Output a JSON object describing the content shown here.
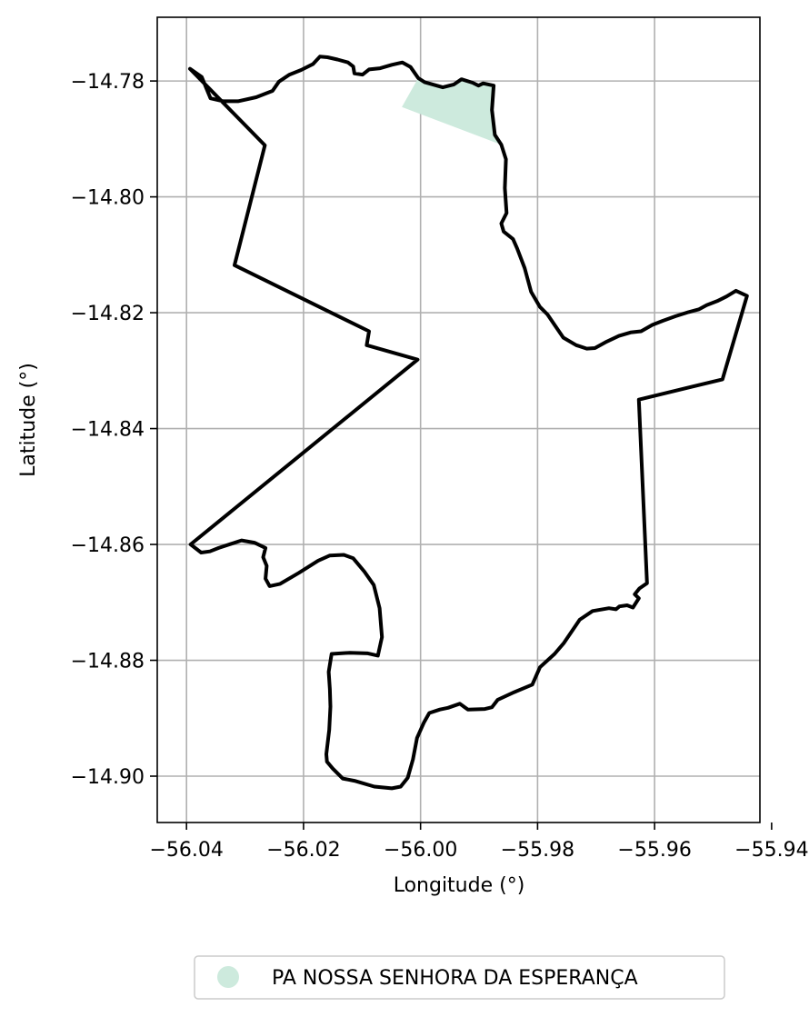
{
  "chart_data": {
    "type": "map",
    "xlabel": "Longitude (°)",
    "ylabel": "Latitude (°)",
    "xlim": [
      -56.045,
      -55.942
    ],
    "ylim": [
      -14.908,
      -14.769
    ],
    "xticks": [
      -56.04,
      -56.02,
      -56.0,
      -55.98,
      -55.96,
      -55.94
    ],
    "xtick_labels": [
      "−56.04",
      "−56.02",
      "−56.00",
      "−55.98",
      "−55.96",
      "−55.94"
    ],
    "yticks": [
      -14.78,
      -14.8,
      -14.82,
      -14.84,
      -14.86,
      -14.88,
      -14.9
    ],
    "ytick_labels": [
      "−14.78",
      "−14.80",
      "−14.82",
      "−14.84",
      "−14.86",
      "−14.88",
      "−14.90"
    ],
    "grid": true,
    "legend_position": "bottom-center",
    "colors": {
      "boundary": "#000000",
      "area_fill": "#cdeadd",
      "grid": "#b0b0b0"
    },
    "legend": [
      {
        "label": "PA NOSSA SENHORA DA ESPERANÇA",
        "color": "#cdeadd"
      }
    ],
    "boundary": [
      [
        -56.0394,
        -14.7779
      ],
      [
        -56.0374,
        -14.7793
      ],
      [
        -56.0359,
        -14.783
      ],
      [
        -56.0337,
        -14.7835
      ],
      [
        -56.0312,
        -14.7835
      ],
      [
        -56.0281,
        -14.7828
      ],
      [
        -56.0253,
        -14.7817
      ],
      [
        -56.0242,
        -14.7801
      ],
      [
        -56.0224,
        -14.7789
      ],
      [
        -56.0204,
        -14.7781
      ],
      [
        -56.0184,
        -14.7771
      ],
      [
        -56.0172,
        -14.7758
      ],
      [
        -56.0159,
        -14.7759
      ],
      [
        -56.0142,
        -14.7763
      ],
      [
        -56.0124,
        -14.7768
      ],
      [
        -56.0115,
        -14.7775
      ],
      [
        -56.0113,
        -14.7787
      ],
      [
        -56.0099,
        -14.7789
      ],
      [
        -56.0088,
        -14.778
      ],
      [
        -56.0069,
        -14.7778
      ],
      [
        -56.0049,
        -14.7772
      ],
      [
        -56.0031,
        -14.7768
      ],
      [
        -56.0017,
        -14.7776
      ],
      [
        -56.0004,
        -14.7795
      ],
      [
        -55.9993,
        -14.7802
      ],
      [
        -55.9962,
        -14.7811
      ],
      [
        -55.9943,
        -14.7806
      ],
      [
        -55.993,
        -14.7797
      ],
      [
        -55.9911,
        -14.7803
      ],
      [
        -55.9901,
        -14.7808
      ],
      [
        -55.9893,
        -14.7804
      ],
      [
        -55.9875,
        -14.7808
      ],
      [
        -55.9878,
        -14.785
      ],
      [
        -55.9873,
        -14.7893
      ],
      [
        -55.9862,
        -14.791
      ],
      [
        -55.9854,
        -14.7935
      ],
      [
        -55.9856,
        -14.7985
      ],
      [
        -55.9853,
        -14.8028
      ],
      [
        -55.9862,
        -14.8046
      ],
      [
        -55.9858,
        -14.806
      ],
      [
        -55.9842,
        -14.8073
      ],
      [
        -55.9835,
        -14.8089
      ],
      [
        -55.9822,
        -14.8123
      ],
      [
        -55.9811,
        -14.8164
      ],
      [
        -55.9796,
        -14.819
      ],
      [
        -55.9783,
        -14.8203
      ],
      [
        -55.9769,
        -14.8224
      ],
      [
        -55.9756,
        -14.8243
      ],
      [
        -55.9734,
        -14.8256
      ],
      [
        -55.9716,
        -14.8262
      ],
      [
        -55.9702,
        -14.8261
      ],
      [
        -55.9682,
        -14.825
      ],
      [
        -55.9661,
        -14.824
      ],
      [
        -55.9641,
        -14.8234
      ],
      [
        -55.9623,
        -14.8232
      ],
      [
        -55.9604,
        -14.8221
      ],
      [
        -55.9586,
        -14.8214
      ],
      [
        -55.9564,
        -14.8206
      ],
      [
        -55.9542,
        -14.8199
      ],
      [
        -55.9524,
        -14.8194
      ],
      [
        -55.9511,
        -14.8187
      ],
      [
        -55.9493,
        -14.818
      ],
      [
        -55.9477,
        -14.8172
      ],
      [
        -55.9461,
        -14.8162
      ],
      [
        -55.9442,
        -14.8171
      ],
      [
        -55.9484,
        -14.8315
      ],
      [
        -55.9627,
        -14.835
      ],
      [
        -55.9613,
        -14.8667
      ],
      [
        -55.9626,
        -14.8676
      ],
      [
        -55.9634,
        -14.8686
      ],
      [
        -55.9627,
        -14.8693
      ],
      [
        -55.9637,
        -14.8709
      ],
      [
        -55.9647,
        -14.8705
      ],
      [
        -55.966,
        -14.8707
      ],
      [
        -55.9666,
        -14.8712
      ],
      [
        -55.9678,
        -14.871
      ],
      [
        -55.9706,
        -14.8715
      ],
      [
        -55.9728,
        -14.873
      ],
      [
        -55.9755,
        -14.877
      ],
      [
        -55.9771,
        -14.8789
      ],
      [
        -55.9796,
        -14.8812
      ],
      [
        -55.9809,
        -14.8842
      ],
      [
        -55.984,
        -14.8855
      ],
      [
        -55.9868,
        -14.8868
      ],
      [
        -55.9878,
        -14.8881
      ],
      [
        -55.989,
        -14.8884
      ],
      [
        -55.9919,
        -14.8885
      ],
      [
        -55.9933,
        -14.8875
      ],
      [
        -55.9953,
        -14.8882
      ],
      [
        -55.9967,
        -14.8885
      ],
      [
        -55.9985,
        -14.8891
      ],
      [
        -55.9994,
        -14.8907
      ],
      [
        -56.0006,
        -14.8934
      ],
      [
        -56.0013,
        -14.8971
      ],
      [
        -56.0022,
        -14.9003
      ],
      [
        -56.0034,
        -14.9018
      ],
      [
        -56.0049,
        -14.9021
      ],
      [
        -56.0079,
        -14.9018
      ],
      [
        -56.0113,
        -14.9008
      ],
      [
        -56.0133,
        -14.9004
      ],
      [
        -56.015,
        -14.8987
      ],
      [
        -56.016,
        -14.8975
      ],
      [
        -56.0161,
        -14.8962
      ],
      [
        -56.0156,
        -14.892
      ],
      [
        -56.0154,
        -14.888
      ],
      [
        -56.0155,
        -14.885
      ],
      [
        -56.0157,
        -14.882
      ],
      [
        -56.0152,
        -14.8789
      ],
      [
        -56.0121,
        -14.8787
      ],
      [
        -56.009,
        -14.8788
      ],
      [
        -56.0073,
        -14.8792
      ],
      [
        -56.0066,
        -14.876
      ],
      [
        -56.007,
        -14.871
      ],
      [
        -56.008,
        -14.867
      ],
      [
        -56.0096,
        -14.8647
      ],
      [
        -56.0115,
        -14.8624
      ],
      [
        -56.0131,
        -14.8618
      ],
      [
        -56.0155,
        -14.8619
      ],
      [
        -56.0175,
        -14.8628
      ],
      [
        -56.0208,
        -14.8649
      ],
      [
        -56.024,
        -14.8668
      ],
      [
        -56.0258,
        -14.8672
      ],
      [
        -56.0265,
        -14.8659
      ],
      [
        -56.0263,
        -14.8637
      ],
      [
        -56.0269,
        -14.8622
      ],
      [
        -56.0265,
        -14.8606
      ],
      [
        -56.0284,
        -14.8597
      ],
      [
        -56.0306,
        -14.8593
      ],
      [
        -56.0345,
        -14.8606
      ],
      [
        -56.036,
        -14.8612
      ],
      [
        -56.0375,
        -14.8614
      ],
      [
        -56.0393,
        -14.86
      ],
      [
        -56.0005,
        -14.8281
      ],
      [
        -56.0092,
        -14.8256
      ],
      [
        -56.0088,
        -14.8232
      ],
      [
        -56.0318,
        -14.8118
      ],
      [
        -56.0266,
        -14.7911
      ],
      [
        -56.0394,
        -14.7779
      ]
    ],
    "filled_area": {
      "name": "PA NOSSA SENHORA DA ESPERANÇA",
      "polygon": [
        [
          -56.0004,
          -14.7795
        ],
        [
          -55.9993,
          -14.7802
        ],
        [
          -55.9962,
          -14.7811
        ],
        [
          -55.9943,
          -14.7806
        ],
        [
          -55.993,
          -14.7797
        ],
        [
          -55.9911,
          -14.7803
        ],
        [
          -55.9901,
          -14.7808
        ],
        [
          -55.9893,
          -14.7804
        ],
        [
          -55.9875,
          -14.7808
        ],
        [
          -55.9878,
          -14.785
        ],
        [
          -55.9873,
          -14.7893
        ],
        [
          -55.9862,
          -14.791
        ],
        [
          -56.0032,
          -14.7845
        ],
        [
          -56.0004,
          -14.7795
        ]
      ]
    }
  }
}
